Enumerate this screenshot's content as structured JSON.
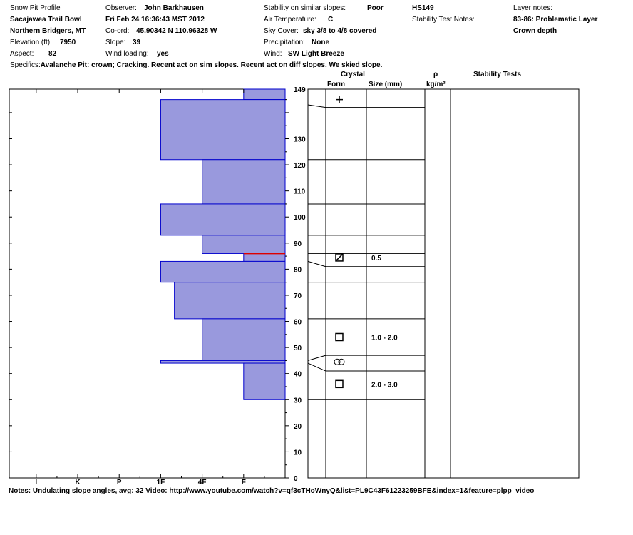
{
  "header": {
    "title": "Snow Pit Profile",
    "location": "Sacajawea Trail Bowl",
    "region": "Northern Bridgers, MT",
    "elevation_label": "Elevation (ft)",
    "elevation": "7950",
    "aspect_label": "Aspect:",
    "aspect": "82",
    "observer_label": "Observer:",
    "observer": "John Barkhausen",
    "datetime": "Fri Feb 24 16:36:43 MST 2012",
    "coord_label": "Co-ord:",
    "coord": "45.90342 N 110.96328 W",
    "slope_label": "Slope:",
    "slope": "39",
    "wind_loading_label": "Wind loading:",
    "wind_loading": "yes",
    "stability_label": "Stability on similar slopes:",
    "stability": "Poor",
    "air_temp_label": "Air Temperature:",
    "air_temp": "C",
    "sky_label": "Sky Cover:",
    "sky": "sky 3/8 to 4/8 covered",
    "precip_label": "Precipitation:",
    "precip": "None",
    "wind_label": "Wind:",
    "wind": "SW Light Breeze",
    "hs": "HS149",
    "test_notes_label": "Stability Test Notes:",
    "layer_notes_label": "Layer notes:",
    "layer_note_1": "83-86: Problematic Layer",
    "layer_note_2": "Crown depth",
    "specifics_label": "Specifics:",
    "specifics": "Avalanche Pit: crown; Cracking. Recent act on sim slopes. Recent act on diff slopes. We skied slope."
  },
  "columns": {
    "crystal": "Crystal",
    "form": "Form",
    "size": "Size (mm)",
    "rho": "ρ",
    "density_unit": "kg/m³",
    "stability_tests": "Stability Tests"
  },
  "notes": "Notes:  Undulating slope angles, avg: 32   Video: http://www.youtube.com/watch?v=qf3cTHoWnyQ&list=PL9C43F61223259BFE&index=1&feature=plpp_video",
  "chart_data": {
    "type": "bar",
    "orientation": "horizontal",
    "description_axis": "snow height (cm)",
    "ylim": [
      0,
      149
    ],
    "yticks": [
      0,
      10,
      20,
      30,
      40,
      50,
      60,
      70,
      80,
      90,
      100,
      110,
      120,
      130
    ],
    "ytop_label": "149",
    "hardness_scale": [
      "I",
      "K",
      "P",
      "1F",
      "4F",
      "F"
    ],
    "hardness_values": [
      6,
      5,
      4,
      3,
      2,
      1
    ],
    "hardness_max": 6.65,
    "colors": {
      "fill": "#9999dd",
      "stroke": "#0000cc",
      "critical": "#dd0000"
    },
    "layers": [
      {
        "bottom": 145,
        "top": 149,
        "hardness": 1
      },
      {
        "bottom": 122,
        "top": 145,
        "hardness": 3
      },
      {
        "bottom": 105,
        "top": 122,
        "hardness": 2
      },
      {
        "bottom": 93,
        "top": 105,
        "hardness": 3
      },
      {
        "bottom": 86,
        "top": 93,
        "hardness": 2
      },
      {
        "bottom": 83,
        "top": 86,
        "hardness": 1
      },
      {
        "bottom": 75,
        "top": 83,
        "hardness": 3
      },
      {
        "bottom": 61,
        "top": 75,
        "hardness": 2.67
      },
      {
        "bottom": 45,
        "top": 61,
        "hardness": 2
      },
      {
        "bottom": 44,
        "top": 45,
        "hardness": 3
      },
      {
        "bottom": 30,
        "top": 44,
        "hardness": 1
      }
    ],
    "critical_layer": 86,
    "crystals": [
      {
        "height": 145,
        "symbol": "plus",
        "size": ""
      },
      {
        "height": 84.5,
        "symbol": "square-hatched",
        "size": "0.5"
      },
      {
        "height": 54,
        "symbol": "square",
        "size": "1.0 - 2.0"
      },
      {
        "height": 44.5,
        "symbol": "rounded-loop",
        "size": ""
      },
      {
        "height": 36,
        "symbol": "square",
        "size": "2.0 - 3.0"
      }
    ],
    "layer_boundaries": [
      {
        "left": 143,
        "right": 142
      },
      {
        "left": 122,
        "right": 122
      },
      {
        "left": 105,
        "right": 105
      },
      {
        "left": 93,
        "right": 93
      },
      {
        "left": 86,
        "right": 86
      },
      {
        "left": 83,
        "right": 81
      },
      {
        "left": 75,
        "right": 75
      },
      {
        "left": 61,
        "right": 61
      },
      {
        "left": 45,
        "right": 47
      },
      {
        "left": 44,
        "right": 41
      },
      {
        "left": 30,
        "right": 30
      }
    ]
  }
}
